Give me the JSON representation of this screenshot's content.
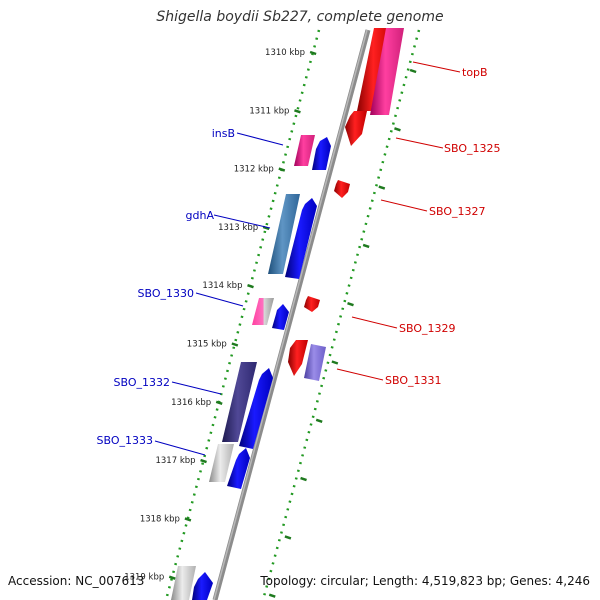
{
  "title": "Shigella boydii Sb227, complete genome",
  "footer": {
    "accession": "Accession: NC_007613",
    "summary": "Topology: circular; Length: 4,519,823 bp; Genes: 4,246"
  },
  "ticks": [
    "1310 kbp",
    "1311 kbp",
    "1312 kbp",
    "1313 kbp",
    "1314 kbp",
    "1315 kbp",
    "1316 kbp",
    "1317 kbp",
    "1318 kbp",
    "1319 kbp"
  ],
  "features": [
    {
      "name": "topB",
      "strand": "reverse",
      "color": "#d00000"
    },
    {
      "name": "SBO_1325",
      "strand": "reverse",
      "color": "#d00000"
    },
    {
      "name": "SBO_1327",
      "strand": "reverse",
      "color": "#d00000"
    },
    {
      "name": "SBO_1329",
      "strand": "reverse",
      "color": "#d00000"
    },
    {
      "name": "SBO_1331",
      "strand": "reverse",
      "color": "#d00000"
    },
    {
      "name": "insB",
      "strand": "forward",
      "color": "#0000c0"
    },
    {
      "name": "gdhA",
      "strand": "forward",
      "color": "#0000c0"
    },
    {
      "name": "SBO_1330",
      "strand": "forward",
      "color": "#0000c0"
    },
    {
      "name": "SBO_1332",
      "strand": "forward",
      "color": "#0000c0"
    },
    {
      "name": "SBO_1333",
      "strand": "forward",
      "color": "#0000c0"
    }
  ]
}
